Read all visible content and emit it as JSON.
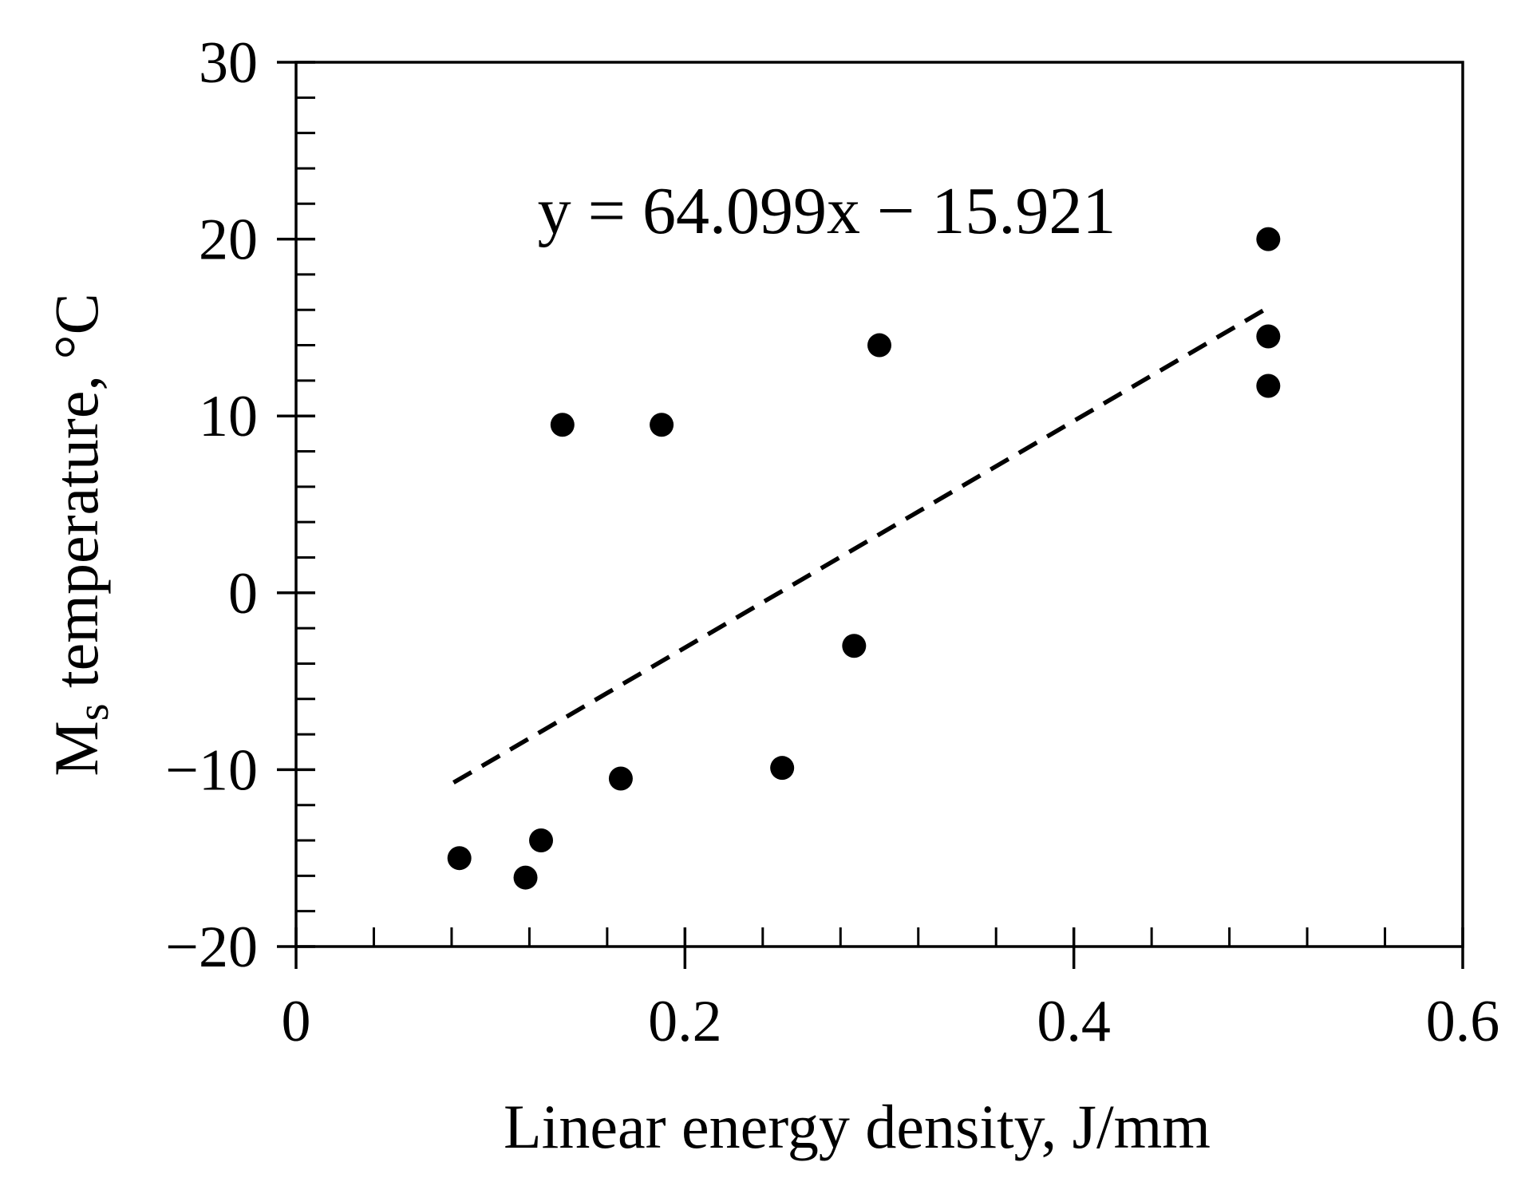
{
  "chart_data": {
    "type": "scatter",
    "title": "",
    "xlabel": "Linear energy density, J/mm",
    "ylabel": {
      "main": "M",
      "sub": "s",
      "rest": " temperature, °C"
    },
    "xlim": [
      0,
      0.6
    ],
    "ylim": [
      -20,
      30
    ],
    "x_ticks": [
      0,
      0.2,
      0.4,
      0.6
    ],
    "x_tick_labels": [
      "0",
      "0.2",
      "0.4",
      "0.6"
    ],
    "x_minor_step": 0.04,
    "y_ticks": [
      -20,
      -10,
      0,
      10,
      20,
      30
    ],
    "y_tick_labels": [
      "−20",
      "−10",
      "0",
      "10",
      "20",
      "30"
    ],
    "y_minor_step": 2,
    "grid": false,
    "series": [
      {
        "name": "Ms temperature",
        "marker": "filled-circle",
        "color": "#000000",
        "points": [
          {
            "x": 0.084,
            "y": -15.0
          },
          {
            "x": 0.118,
            "y": -16.1
          },
          {
            "x": 0.126,
            "y": -14.0
          },
          {
            "x": 0.137,
            "y": 9.5
          },
          {
            "x": 0.167,
            "y": -10.5
          },
          {
            "x": 0.188,
            "y": 9.5
          },
          {
            "x": 0.25,
            "y": -9.9
          },
          {
            "x": 0.287,
            "y": -3.0
          },
          {
            "x": 0.3,
            "y": 14.0
          },
          {
            "x": 0.5,
            "y": 20.0
          },
          {
            "x": 0.5,
            "y": 14.5
          },
          {
            "x": 0.5,
            "y": 11.7
          }
        ]
      }
    ],
    "trendline": {
      "type": "linear",
      "style": "dashed",
      "slope": 64.099,
      "intercept": -15.921,
      "x_range": [
        0.081,
        0.5
      ],
      "equation": "y = 64.099x − 15.921"
    }
  }
}
